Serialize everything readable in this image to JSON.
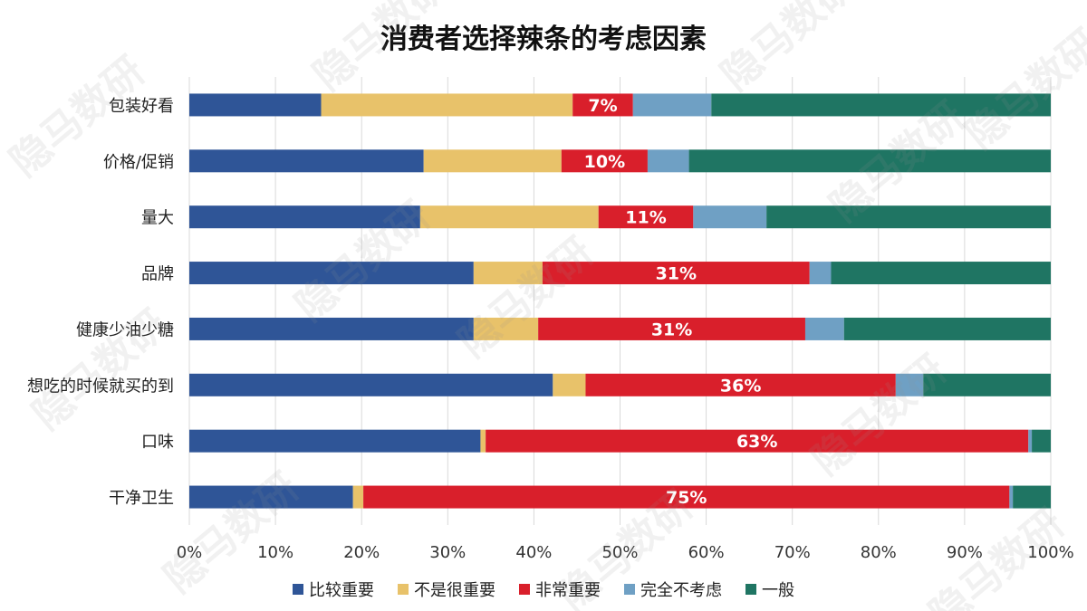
{
  "chart_data": {
    "type": "bar",
    "orientation": "horizontal",
    "stacked": true,
    "title": "消费者选择辣条的考虑因素",
    "categories": [
      "包装好看",
      "价格/促销",
      "量大",
      "品牌",
      "健康少油少糖",
      "想吃的时候就买的到",
      "口味",
      "干净卫生"
    ],
    "series": [
      {
        "name": "比较重要",
        "color": "#2F5597",
        "values": [
          15.3,
          27.2,
          26.8,
          33.0,
          33.0,
          42.2,
          33.8,
          19.0
        ]
      },
      {
        "name": "不是很重要",
        "color": "#E8C26A",
        "values": [
          29.2,
          16.0,
          20.7,
          8.0,
          7.5,
          3.8,
          0.6,
          1.2
        ]
      },
      {
        "name": "非常重要",
        "color": "#D91F2B",
        "values": [
          7,
          10,
          11,
          31,
          31,
          36,
          63,
          75
        ]
      },
      {
        "name": "完全不考虑",
        "color": "#6FA0C4",
        "values": [
          9.1,
          4.8,
          8.5,
          2.5,
          4.5,
          3.2,
          0.4,
          0.4
        ]
      },
      {
        "name": "一般",
        "color": "#1F7563",
        "values": [
          39.4,
          42.0,
          33.0,
          25.5,
          24.0,
          14.8,
          2.2,
          4.4
        ]
      }
    ],
    "data_labels": {
      "series": "非常重要",
      "labels": [
        "7%",
        "10%",
        "11%",
        "31%",
        "31%",
        "36%",
        "63%",
        "75%"
      ]
    },
    "xlim": [
      0,
      100
    ],
    "x_ticks": [
      "0%",
      "10%",
      "20%",
      "30%",
      "40%",
      "50%",
      "60%",
      "70%",
      "80%",
      "90%",
      "100%"
    ],
    "grid": "vertical",
    "legend_position": "bottom"
  },
  "watermark": {
    "text": "隐马数研"
  }
}
